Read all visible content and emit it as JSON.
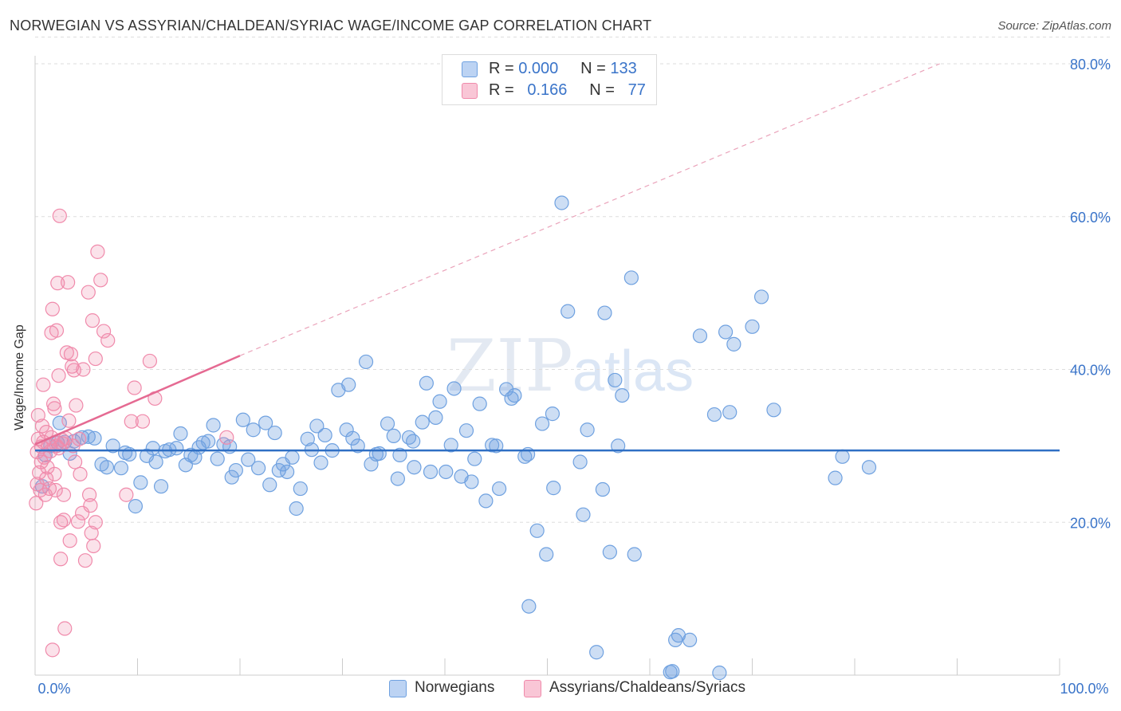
{
  "title": "NORWEGIAN VS ASSYRIAN/CHALDEAN/SYRIAC WAGE/INCOME GAP CORRELATION CHART",
  "source": "Source: ZipAtlas.com",
  "watermark": "ZIPatlas",
  "legend_top": {
    "rows": [
      {
        "r_label": "R = ",
        "r_value": "0.000",
        "n_label": "N = ",
        "n_value": "133"
      },
      {
        "r_label": "R = ",
        "r_value": "0.166",
        "n_label": "N = ",
        "n_value": "77"
      }
    ]
  },
  "chart_data": {
    "type": "scatter",
    "ylabel": "Wage/Income Gap",
    "xlabel": "",
    "xlim": [
      0,
      100
    ],
    "ylim": [
      0,
      85
    ],
    "x_tick_labels": [
      "0.0%",
      "100.0%"
    ],
    "y_tick_labels": [
      "20.0%",
      "40.0%",
      "60.0%",
      "80.0%"
    ],
    "y_ticks": [
      20,
      40,
      60,
      80
    ],
    "grid": true,
    "colors": {
      "norwegians": "#6fa1e0",
      "assyrians": "#f08aab",
      "blue_line": "#2f6fc4",
      "pink_line": "#e56a92"
    },
    "series": [
      {
        "name": "Norwegians",
        "points": [
          [
            0.7,
            24.7
          ],
          [
            1.0,
            28.8
          ],
          [
            1.5,
            30.0
          ],
          [
            2.2,
            30.4
          ],
          [
            2.4,
            33.0
          ],
          [
            2.9,
            30.5
          ],
          [
            3.4,
            29.0
          ],
          [
            3.8,
            30.6
          ],
          [
            4.6,
            31.1
          ],
          [
            5.2,
            31.2
          ],
          [
            5.8,
            31.0
          ],
          [
            6.5,
            27.6
          ],
          [
            7.0,
            27.2
          ],
          [
            7.6,
            30.0
          ],
          [
            8.4,
            27.1
          ],
          [
            8.8,
            29.1
          ],
          [
            9.2,
            28.9
          ],
          [
            9.8,
            22.1
          ],
          [
            10.3,
            25.2
          ],
          [
            10.9,
            28.7
          ],
          [
            11.5,
            29.7
          ],
          [
            11.8,
            27.9
          ],
          [
            12.3,
            24.7
          ],
          [
            12.7,
            29.3
          ],
          [
            13.1,
            29.5
          ],
          [
            13.8,
            29.7
          ],
          [
            14.2,
            31.6
          ],
          [
            14.7,
            27.5
          ],
          [
            15.2,
            28.8
          ],
          [
            15.6,
            28.5
          ],
          [
            16.0,
            29.8
          ],
          [
            16.4,
            30.4
          ],
          [
            16.9,
            30.6
          ],
          [
            17.4,
            32.7
          ],
          [
            17.8,
            28.3
          ],
          [
            18.4,
            30.2
          ],
          [
            19.0,
            29.9
          ],
          [
            19.2,
            25.9
          ],
          [
            19.6,
            26.8
          ],
          [
            20.3,
            33.4
          ],
          [
            20.8,
            28.2
          ],
          [
            21.3,
            32.1
          ],
          [
            21.8,
            27.1
          ],
          [
            22.5,
            33.0
          ],
          [
            22.9,
            24.9
          ],
          [
            23.4,
            31.7
          ],
          [
            23.8,
            26.8
          ],
          [
            24.2,
            27.6
          ],
          [
            24.6,
            26.6
          ],
          [
            25.1,
            28.5
          ],
          [
            25.5,
            21.8
          ],
          [
            25.9,
            24.4
          ],
          [
            26.6,
            30.9
          ],
          [
            27.0,
            29.5
          ],
          [
            27.5,
            32.6
          ],
          [
            27.9,
            27.8
          ],
          [
            28.3,
            31.4
          ],
          [
            29.0,
            29.4
          ],
          [
            29.6,
            37.3
          ],
          [
            30.4,
            32.1
          ],
          [
            30.6,
            38.0
          ],
          [
            31.0,
            31.0
          ],
          [
            31.5,
            30.0
          ],
          [
            32.3,
            41.0
          ],
          [
            32.8,
            27.6
          ],
          [
            33.3,
            28.9
          ],
          [
            33.6,
            29.0
          ],
          [
            34.4,
            32.9
          ],
          [
            35.0,
            31.3
          ],
          [
            35.4,
            25.7
          ],
          [
            35.6,
            28.8
          ],
          [
            36.5,
            31.1
          ],
          [
            36.9,
            30.6
          ],
          [
            37.8,
            33.1
          ],
          [
            38.2,
            38.2
          ],
          [
            38.6,
            26.6
          ],
          [
            39.1,
            33.7
          ],
          [
            39.5,
            35.8
          ],
          [
            40.1,
            26.6
          ],
          [
            40.6,
            30.1
          ],
          [
            40.9,
            37.5
          ],
          [
            41.6,
            26.0
          ],
          [
            42.1,
            32.0
          ],
          [
            42.6,
            25.3
          ],
          [
            42.9,
            28.3
          ],
          [
            43.4,
            35.5
          ],
          [
            44.0,
            22.8
          ],
          [
            44.6,
            30.1
          ],
          [
            45.0,
            30.0
          ],
          [
            45.3,
            24.4
          ],
          [
            46.0,
            37.4
          ],
          [
            46.5,
            36.2
          ],
          [
            46.8,
            36.6
          ],
          [
            47.8,
            28.6
          ],
          [
            48.1,
            28.9
          ],
          [
            49.0,
            18.9
          ],
          [
            49.5,
            32.9
          ],
          [
            49.9,
            15.8
          ],
          [
            50.5,
            34.2
          ],
          [
            50.6,
            24.5
          ],
          [
            51.4,
            61.8
          ],
          [
            52.0,
            47.6
          ],
          [
            53.2,
            27.9
          ],
          [
            53.5,
            21.0
          ],
          [
            53.9,
            32.1
          ],
          [
            54.8,
            3.0
          ],
          [
            55.4,
            24.3
          ],
          [
            55.6,
            47.4
          ],
          [
            56.1,
            16.1
          ],
          [
            56.6,
            38.6
          ],
          [
            56.9,
            30.0
          ],
          [
            57.3,
            36.6
          ],
          [
            58.2,
            52.0
          ],
          [
            58.5,
            15.8
          ],
          [
            62.2,
            0.5
          ],
          [
            62.5,
            4.6
          ],
          [
            62.8,
            5.2
          ],
          [
            63.9,
            4.6
          ],
          [
            64.9,
            44.4
          ],
          [
            66.3,
            34.1
          ],
          [
            66.8,
            0.3
          ],
          [
            67.4,
            44.9
          ],
          [
            67.8,
            34.4
          ],
          [
            68.2,
            43.3
          ],
          [
            70.0,
            45.6
          ],
          [
            70.9,
            49.5
          ],
          [
            72.1,
            34.7
          ],
          [
            78.1,
            25.8
          ],
          [
            78.8,
            28.6
          ],
          [
            81.4,
            27.2
          ],
          [
            62.0,
            0.4
          ],
          [
            48.2,
            9.0
          ],
          [
            37.0,
            27.2
          ]
        ]
      },
      {
        "name": "Assyrians/Chaldeans/Syriacs",
        "points": [
          [
            0.1,
            22.5
          ],
          [
            0.2,
            25.0
          ],
          [
            0.2,
            29.2
          ],
          [
            0.3,
            30.9
          ],
          [
            0.3,
            34.0
          ],
          [
            0.4,
            26.5
          ],
          [
            0.5,
            24.2
          ],
          [
            0.6,
            27.9
          ],
          [
            0.6,
            29.9
          ],
          [
            0.7,
            32.6
          ],
          [
            0.8,
            38.0
          ],
          [
            0.8,
            30.5
          ],
          [
            0.9,
            28.5
          ],
          [
            1.0,
            23.6
          ],
          [
            1.1,
            25.7
          ],
          [
            1.1,
            31.8
          ],
          [
            1.2,
            27.2
          ],
          [
            1.3,
            30.1
          ],
          [
            1.4,
            24.4
          ],
          [
            1.5,
            29.3
          ],
          [
            1.6,
            44.8
          ],
          [
            1.6,
            31.1
          ],
          [
            1.7,
            47.9
          ],
          [
            1.8,
            35.5
          ],
          [
            1.9,
            34.9
          ],
          [
            1.9,
            26.3
          ],
          [
            2.0,
            24.2
          ],
          [
            2.1,
            30.0
          ],
          [
            2.1,
            45.1
          ],
          [
            2.2,
            51.3
          ],
          [
            2.3,
            29.7
          ],
          [
            2.3,
            39.2
          ],
          [
            2.4,
            60.1
          ],
          [
            2.5,
            20.0
          ],
          [
            2.5,
            15.2
          ],
          [
            2.6,
            30.8
          ],
          [
            2.7,
            30.3
          ],
          [
            2.8,
            20.3
          ],
          [
            2.8,
            23.6
          ],
          [
            2.9,
            6.1
          ],
          [
            3.0,
            31.0
          ],
          [
            3.1,
            42.2
          ],
          [
            3.2,
            51.4
          ],
          [
            3.3,
            33.3
          ],
          [
            3.4,
            17.6
          ],
          [
            3.5,
            42.0
          ],
          [
            3.6,
            40.4
          ],
          [
            3.7,
            30.0
          ],
          [
            3.8,
            39.9
          ],
          [
            3.9,
            27.9
          ],
          [
            4.0,
            35.3
          ],
          [
            4.2,
            20.1
          ],
          [
            4.3,
            30.9
          ],
          [
            4.4,
            26.3
          ],
          [
            4.6,
            21.2
          ],
          [
            4.7,
            40.0
          ],
          [
            4.9,
            15.0
          ],
          [
            5.2,
            50.1
          ],
          [
            5.3,
            23.6
          ],
          [
            5.4,
            22.2
          ],
          [
            5.5,
            18.6
          ],
          [
            5.6,
            46.4
          ],
          [
            5.7,
            16.9
          ],
          [
            5.9,
            20.0
          ],
          [
            6.1,
            55.4
          ],
          [
            6.4,
            51.7
          ],
          [
            6.7,
            45.0
          ],
          [
            7.1,
            43.8
          ],
          [
            8.9,
            23.6
          ],
          [
            9.4,
            33.2
          ],
          [
            9.7,
            37.6
          ],
          [
            10.5,
            33.2
          ],
          [
            11.2,
            41.1
          ],
          [
            11.7,
            36.2
          ],
          [
            18.7,
            31.1
          ],
          [
            1.7,
            3.3
          ],
          [
            5.9,
            41.4
          ]
        ]
      }
    ],
    "trend_lines": [
      {
        "series": "Norwegians",
        "x": [
          0,
          100
        ],
        "y": [
          29.4,
          29.4
        ]
      },
      {
        "series": "Assyrians/Chaldeans/Syriacs",
        "x": [
          0,
          20
        ],
        "y": [
          30.2,
          41.8
        ],
        "dashed_extension_to": [
          88.3,
          80.0
        ]
      }
    ]
  },
  "bottom_legend": [
    "Norwegians",
    "Assyrians/Chaldeans/Syriacs"
  ]
}
